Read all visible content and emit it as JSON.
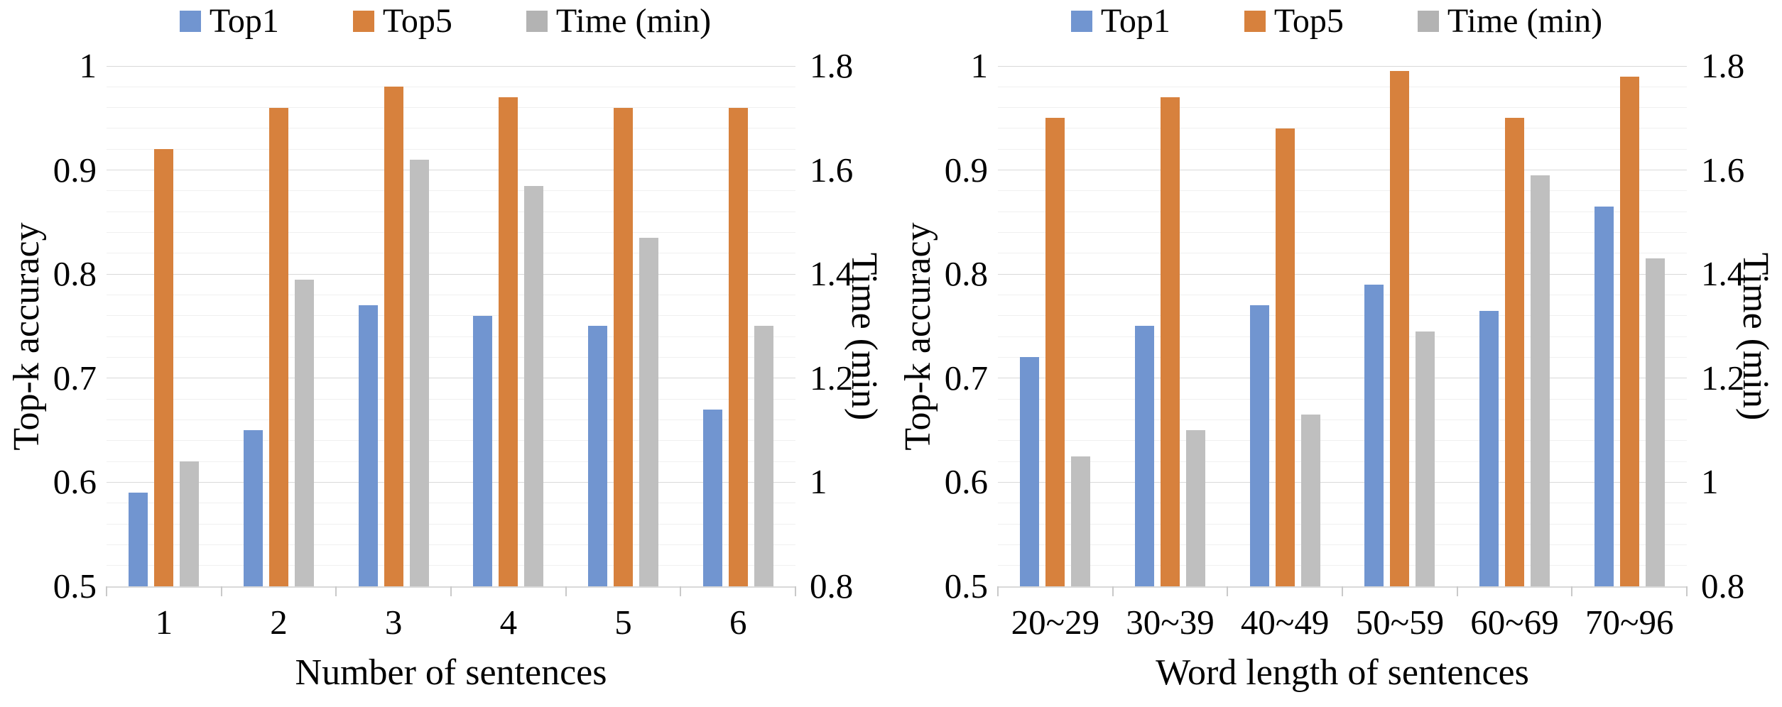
{
  "legend": {
    "items": [
      {
        "label": "Top1",
        "color": "#7195d0"
      },
      {
        "label": "Top5",
        "color": "#d7813d"
      },
      {
        "label": "Time (min)",
        "color": "#b3b3b3"
      }
    ]
  },
  "axes": {
    "left": {
      "title": "Top-k accuracy",
      "tick_labels": [
        "1",
        "0.9",
        "0.8",
        "0.7",
        "0.6",
        "0.5"
      ],
      "tick_values": [
        1,
        0.9,
        0.8,
        0.7,
        0.6,
        0.5
      ],
      "range": [
        0.5,
        1.0
      ]
    },
    "right": {
      "title": "Time (min)",
      "tick_labels": [
        "1.8",
        "1.6",
        "1.4",
        "1.2",
        "1",
        "0.8"
      ],
      "tick_values": [
        1.8,
        1.6,
        1.4,
        1.2,
        1,
        0.8
      ],
      "range": [
        0.8,
        1.8
      ]
    }
  },
  "chart_data": [
    {
      "type": "bar",
      "xlabel": "Number of sentences",
      "ylabel_left": "Top-k accuracy",
      "ylabel_right": "Time (min)",
      "categories": [
        "1",
        "2",
        "3",
        "4",
        "5",
        "6"
      ],
      "axis_left_range": [
        0.5,
        1.0
      ],
      "axis_right_range": [
        0.8,
        1.8
      ],
      "gridlines": {
        "minor_step_left": 0.02,
        "major_step_left": 0.1,
        "visible": true
      },
      "legend_position": "top",
      "series": [
        {
          "name": "Top1",
          "axis": "left",
          "color": "#7195d0",
          "values": [
            0.59,
            0.65,
            0.77,
            0.76,
            0.75,
            0.67
          ]
        },
        {
          "name": "Top5",
          "axis": "left",
          "color": "#d7813d",
          "values": [
            0.92,
            0.96,
            0.98,
            0.97,
            0.96,
            0.96
          ]
        },
        {
          "name": "Time (min)",
          "axis": "right",
          "color": "#bfbfbf",
          "values": [
            1.04,
            1.39,
            1.62,
            1.57,
            1.47,
            1.3
          ]
        }
      ]
    },
    {
      "type": "bar",
      "xlabel": "Word length of sentences",
      "ylabel_left": "Top-k accuracy",
      "ylabel_right": "Time (min)",
      "categories": [
        "20~29",
        "30~39",
        "40~49",
        "50~59",
        "60~69",
        "70~96"
      ],
      "axis_left_range": [
        0.5,
        1.0
      ],
      "axis_right_range": [
        0.8,
        1.8
      ],
      "gridlines": {
        "minor_step_left": 0.02,
        "major_step_left": 0.1,
        "visible": true
      },
      "legend_position": "top",
      "series": [
        {
          "name": "Top1",
          "axis": "left",
          "color": "#7195d0",
          "values": [
            0.72,
            0.75,
            0.77,
            0.79,
            0.765,
            0.865
          ]
        },
        {
          "name": "Top5",
          "axis": "left",
          "color": "#d7813d",
          "values": [
            0.95,
            0.97,
            0.94,
            0.995,
            0.95,
            0.99
          ]
        },
        {
          "name": "Time (min)",
          "axis": "right",
          "color": "#bfbfbf",
          "values": [
            1.05,
            1.1,
            1.13,
            1.29,
            1.59,
            1.43
          ]
        }
      ]
    }
  ]
}
